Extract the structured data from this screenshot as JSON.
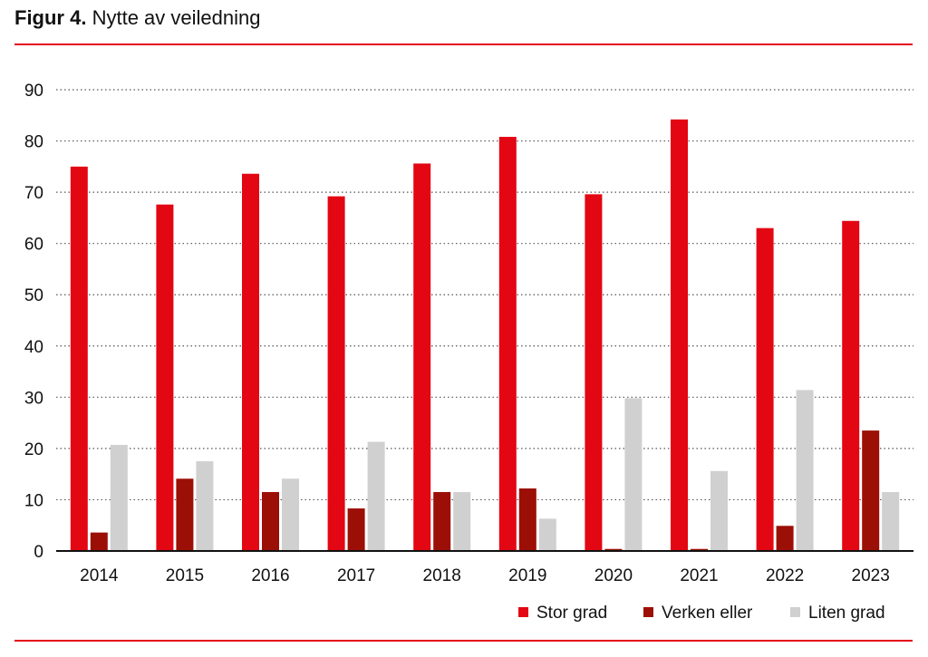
{
  "title": {
    "label": "Figur 4.",
    "text": "Nytte av veiledning"
  },
  "colors": {
    "rule": "#e30613",
    "grid": "#555555",
    "axis": "#111111"
  },
  "chart_data": {
    "type": "bar",
    "title": "Figur 4. Nytte av veiledning",
    "xlabel": "",
    "ylabel": "",
    "ylim": [
      0,
      90
    ],
    "yticks": [
      0,
      10,
      20,
      30,
      40,
      50,
      60,
      70,
      80,
      90
    ],
    "grid": true,
    "grid_style": "dotted horizontal",
    "legend_position": "bottom-right",
    "categories": [
      "2014",
      "2015",
      "2016",
      "2017",
      "2018",
      "2019",
      "2020",
      "2021",
      "2022",
      "2023"
    ],
    "series": [
      {
        "name": "Stor grad",
        "color": "#e30613",
        "values": [
          75,
          67.6,
          73.6,
          69.2,
          75.6,
          80.8,
          69.6,
          84.2,
          63.0,
          64.4
        ]
      },
      {
        "name": "Verken eller",
        "color": "#9c0f06",
        "values": [
          3.6,
          14.1,
          11.5,
          8.3,
          11.5,
          12.2,
          0.4,
          0.4,
          4.9,
          23.5
        ]
      },
      {
        "name": "Liten grad",
        "color": "#d0d0d0",
        "values": [
          20.7,
          17.5,
          14.1,
          21.3,
          11.5,
          6.3,
          29.8,
          15.6,
          31.4,
          11.5
        ]
      }
    ]
  }
}
